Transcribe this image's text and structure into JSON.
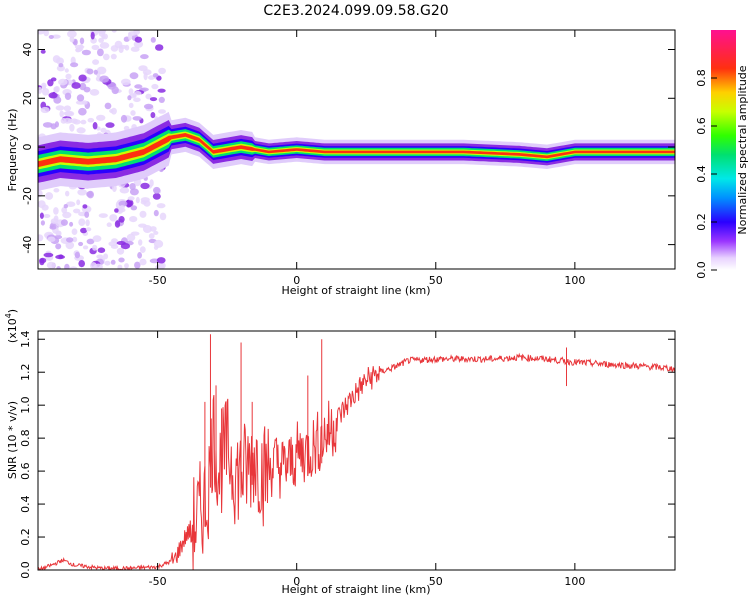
{
  "title": "C2E3.2024.099.09.58.G20",
  "chart_data": [
    {
      "type": "heatmap",
      "xlabel": "Height of straight line (km)",
      "ylabel": "Frequency (Hz)",
      "xlim": [
        -93,
        136
      ],
      "ylim": [
        -50,
        48
      ],
      "xticks": [
        -50,
        0,
        50,
        100
      ],
      "yticks": [
        -40,
        -20,
        0,
        20,
        40
      ],
      "colorbar": {
        "label": "Normalized spectral amplitude",
        "range": [
          0,
          1
        ],
        "ticks": [
          "0.0",
          "0.2",
          "0.4",
          "0.6",
          "0.8"
        ]
      },
      "ridge": [
        {
          "x": -93,
          "y": -7
        },
        {
          "x": -85,
          "y": -5
        },
        {
          "x": -75,
          "y": -6
        },
        {
          "x": -65,
          "y": -5
        },
        {
          "x": -55,
          "y": -2
        },
        {
          "x": -45,
          "y": 4
        },
        {
          "x": -40,
          "y": 5
        },
        {
          "x": -35,
          "y": 3
        },
        {
          "x": -30,
          "y": -2
        },
        {
          "x": -25,
          "y": -1
        },
        {
          "x": -20,
          "y": 0
        },
        {
          "x": -10,
          "y": -2
        },
        {
          "x": 0,
          "y": -1
        },
        {
          "x": 10,
          "y": -2
        },
        {
          "x": 20,
          "y": -2
        },
        {
          "x": 40,
          "y": -2
        },
        {
          "x": 60,
          "y": -2
        },
        {
          "x": 80,
          "y": -3
        },
        {
          "x": 90,
          "y": -4
        },
        {
          "x": 100,
          "y": -2
        },
        {
          "x": 136,
          "y": -2
        }
      ]
    },
    {
      "type": "line",
      "xlabel": "Height of straight line (km)",
      "ylabel": "SNR (10 * v/v)",
      "yscale_label": "(x10",
      "yscale_exponent": "4",
      "yscale_close": ")",
      "xlim": [
        -93,
        136
      ],
      "ylim": [
        0,
        1.45
      ],
      "xticks": [
        -50,
        0,
        50,
        100
      ],
      "yticks": [
        "0.0",
        "0.2",
        "0.4",
        "0.6",
        "0.8",
        "1.0",
        "1.2",
        "1.4"
      ],
      "series": [
        {
          "color": "#e8363a",
          "points": [
            [
              -93,
              0.0
            ],
            [
              -88,
              0.03
            ],
            [
              -84,
              0.06
            ],
            [
              -80,
              0.03
            ],
            [
              -70,
              0.01
            ],
            [
              -60,
              0.01
            ],
            [
              -50,
              0.02
            ],
            [
              -44,
              0.06
            ],
            [
              -40,
              0.2
            ],
            [
              -36,
              0.3
            ],
            [
              -32,
              0.45
            ],
            [
              -30,
              0.85
            ],
            [
              -28,
              0.6
            ],
            [
              -25,
              0.75
            ],
            [
              -22,
              0.58
            ],
            [
              -18,
              0.6
            ],
            [
              -15,
              0.7
            ],
            [
              -12,
              0.58
            ],
            [
              -8,
              0.65
            ],
            [
              -5,
              0.62
            ],
            [
              -2,
              0.65
            ],
            [
              0,
              0.7
            ],
            [
              4,
              0.72
            ],
            [
              8,
              0.78
            ],
            [
              12,
              0.85
            ],
            [
              16,
              0.95
            ],
            [
              20,
              1.05
            ],
            [
              25,
              1.15
            ],
            [
              30,
              1.2
            ],
            [
              35,
              1.23
            ],
            [
              40,
              1.27
            ],
            [
              50,
              1.28
            ],
            [
              60,
              1.28
            ],
            [
              70,
              1.28
            ],
            [
              80,
              1.29
            ],
            [
              90,
              1.28
            ],
            [
              100,
              1.26
            ],
            [
              110,
              1.25
            ],
            [
              120,
              1.24
            ],
            [
              130,
              1.23
            ],
            [
              136,
              1.22
            ]
          ],
          "spikes": [
            [
              -31,
              1.43
            ],
            [
              -29,
              1.12
            ],
            [
              -33,
              1.02
            ],
            [
              -27,
              0.98
            ],
            [
              -20,
              1.38
            ],
            [
              -16,
              1.02
            ],
            [
              9,
              1.4
            ],
            [
              4,
              1.18
            ],
            [
              97,
              1.35
            ]
          ]
        }
      ]
    }
  ]
}
